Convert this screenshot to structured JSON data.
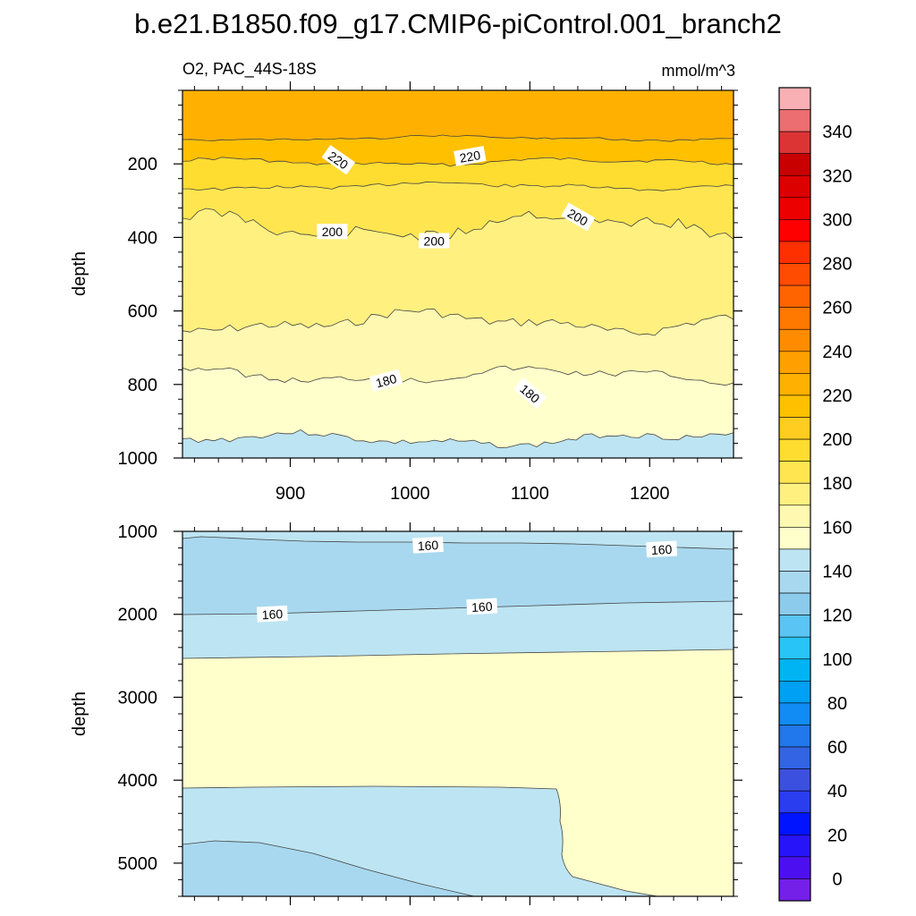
{
  "chart_data": {
    "type": "contour",
    "title": "b.e21.B1850.f09_g17.CMIP6-piControl.001_branch2",
    "variable_label": "O2, PAC_44S-18S",
    "units": "mmol/m^3",
    "panels": [
      {
        "name": "upper",
        "ylabel": "depth",
        "ylim": [
          1000,
          0
        ],
        "y_ticks": [
          200,
          400,
          600,
          800,
          1000
        ],
        "xlim": [
          810,
          1270
        ],
        "x_ticks": [
          900,
          1000,
          1100,
          1200
        ],
        "contour_levels": [
          220,
          210,
          200,
          190,
          180,
          170
        ],
        "contour_labels": [
          {
            "text": "220",
            "x": 940,
            "depth": 190
          },
          {
            "text": "220",
            "x": 1050,
            "depth": 180
          },
          {
            "text": "200",
            "x": 935,
            "depth": 385
          },
          {
            "text": "200",
            "x": 1020,
            "depth": 410
          },
          {
            "text": "200",
            "x": 1140,
            "depth": 345
          },
          {
            "text": "180",
            "x": 980,
            "depth": 790
          },
          {
            "text": "180",
            "x": 1100,
            "depth": 825
          }
        ]
      },
      {
        "name": "lower",
        "ylabel": "depth",
        "ylim": [
          5400,
          1000
        ],
        "y_ticks": [
          1000,
          2000,
          3000,
          4000,
          5000
        ],
        "xlim": [
          810,
          1270
        ],
        "contour_levels": [
          160,
          150
        ],
        "contour_labels": [
          {
            "text": "160",
            "x": 1015,
            "depth": 1170
          },
          {
            "text": "160",
            "x": 1210,
            "depth": 1220
          },
          {
            "text": "160",
            "x": 885,
            "depth": 2000
          },
          {
            "text": "160",
            "x": 1060,
            "depth": 1910
          }
        ]
      }
    ],
    "colorbar": {
      "labels": [
        "340",
        "320",
        "300",
        "280",
        "260",
        "240",
        "220",
        "200",
        "180",
        "160",
        "140",
        "120",
        "100",
        "80",
        "60",
        "40",
        "20",
        "0"
      ],
      "colors": [
        "#f8b0b4",
        "#ec6e70",
        "#dc3434",
        "#c80000",
        "#dc0000",
        "#ec0000",
        "#ff0000",
        "#ff3000",
        "#ff4c00",
        "#ff6400",
        "#ff7800",
        "#ff8c00",
        "#ffa000",
        "#ffb000",
        "#ffc000",
        "#ffcc20",
        "#ffdc30",
        "#ffe650",
        "#fff080",
        "#fff8b0",
        "#ffffcc",
        "#bde4f2",
        "#a8d8ef",
        "#8ccbeb",
        "#5ac5f5",
        "#28c4f8",
        "#00b4f4",
        "#00a0f4",
        "#108cf4",
        "#2078ec",
        "#3264e4",
        "#3c50e0",
        "#2a3ef0",
        "#0014ff",
        "#2814f8",
        "#4c10f0",
        "#7420e8"
      ]
    }
  }
}
